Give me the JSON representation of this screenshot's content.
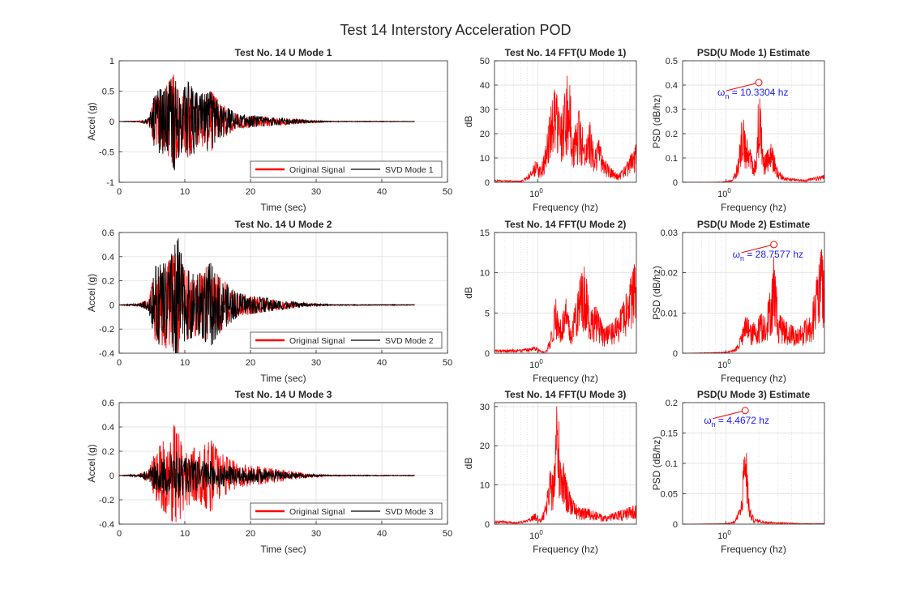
{
  "figure_title": "Test 14 Interstory Acceleration POD",
  "chart_data": [
    {
      "type": "line",
      "title": "Test No. 14 U Mode 1",
      "xlabel": "Time (sec)",
      "ylabel": "Accel (g)",
      "xlim": [
        0,
        50
      ],
      "ylim": [
        -1,
        1
      ],
      "xticks": [
        "0",
        "10",
        "20",
        "30",
        "40",
        "50"
      ],
      "yticks": [
        "-1",
        "-0.5",
        "0",
        "0.5",
        "1"
      ],
      "grid": true,
      "legend_position": "bottom-right",
      "series": [
        {
          "name": "Original Signal",
          "color": "#ff0000",
          "env": [
            [
              0,
              0.003
            ],
            [
              3,
              0.01
            ],
            [
              4.5,
              0.05
            ],
            [
              5.5,
              0.45
            ],
            [
              7,
              0.55
            ],
            [
              8.5,
              0.8
            ],
            [
              9.5,
              0.45
            ],
            [
              10.5,
              0.6
            ],
            [
              12,
              0.4
            ],
            [
              14,
              0.5
            ],
            [
              15.5,
              0.3
            ],
            [
              18,
              0.12
            ],
            [
              22,
              0.08
            ],
            [
              26,
              0.05
            ],
            [
              29,
              0.02
            ],
            [
              32,
              0.006
            ],
            [
              45,
              0.004
            ]
          ]
        },
        {
          "name": "SVD Mode 1",
          "color": "#000000",
          "env": [
            [
              0,
              0.003
            ],
            [
              3,
              0.01
            ],
            [
              4.5,
              0.05
            ],
            [
              5.5,
              0.5
            ],
            [
              7,
              0.55
            ],
            [
              8.5,
              0.8
            ],
            [
              9.5,
              0.5
            ],
            [
              10.5,
              0.65
            ],
            [
              12,
              0.45
            ],
            [
              14,
              0.5
            ],
            [
              15.5,
              0.3
            ],
            [
              18,
              0.12
            ],
            [
              22,
              0.08
            ],
            [
              26,
              0.05
            ],
            [
              29,
              0.02
            ],
            [
              32,
              0.006
            ],
            [
              45,
              0.004
            ]
          ]
        }
      ]
    },
    {
      "type": "line",
      "title": "Test No. 14 FFT(U Mode 1)",
      "xlabel": "Frequency (hz)",
      "ylabel": "dB",
      "xscale": "log",
      "xlim": [
        0.4,
        8
      ],
      "ylim": [
        0,
        50
      ],
      "xtick_value": 1,
      "xticks": [
        "10^0"
      ],
      "yticks": [
        "0",
        "10",
        "20",
        "30",
        "40",
        "50"
      ],
      "grid": true,
      "series": [
        {
          "name": "",
          "color": "#ff0000",
          "env": [
            [
              0.4,
              1
            ],
            [
              0.7,
              0.5
            ],
            [
              0.85,
              4
            ],
            [
              0.95,
              9
            ],
            [
              1.05,
              6
            ],
            [
              1.15,
              12
            ],
            [
              1.3,
              30
            ],
            [
              1.45,
              40
            ],
            [
              1.6,
              25
            ],
            [
              1.75,
              35
            ],
            [
              1.9,
              48
            ],
            [
              2.1,
              22
            ],
            [
              2.4,
              30
            ],
            [
              2.7,
              16
            ],
            [
              3.0,
              25
            ],
            [
              3.3,
              12
            ],
            [
              3.6,
              18
            ],
            [
              4.0,
              10
            ],
            [
              4.6,
              6
            ],
            [
              5.5,
              3
            ],
            [
              6.5,
              8
            ],
            [
              8,
              16
            ]
          ]
        }
      ]
    },
    {
      "type": "line",
      "title": "PSD(U Mode 1) Estimate",
      "xlabel": "Frequency (hz)",
      "ylabel": "PSD (dB/hz)",
      "xscale": "log",
      "xlim": [
        0.4,
        8
      ],
      "ylim": [
        0,
        0.5
      ],
      "xtick_value": 1,
      "xticks": [
        "10^0"
      ],
      "yticks": [
        "0",
        "0.1",
        "0.2",
        "0.3",
        "0.4",
        "0.5"
      ],
      "grid": true,
      "annotation": {
        "text": "ω",
        "sub": "n",
        "rest": " = 10.3304 hz",
        "peak_x": 2.0,
        "peak_y": 0.41
      },
      "series": [
        {
          "name": "",
          "color": "#ff0000",
          "env": [
            [
              0.4,
              0
            ],
            [
              0.9,
              0.001
            ],
            [
              1.0,
              0.005
            ],
            [
              1.15,
              0.01
            ],
            [
              1.3,
              0.1
            ],
            [
              1.42,
              0.3
            ],
            [
              1.5,
              0.2
            ],
            [
              1.7,
              0.12
            ],
            [
              1.9,
              0.08
            ],
            [
              2.0,
              0.41
            ],
            [
              2.2,
              0.1
            ],
            [
              2.6,
              0.16
            ],
            [
              3.0,
              0.05
            ],
            [
              3.5,
              0.02
            ],
            [
              5,
              0.01
            ],
            [
              8,
              0.03
            ]
          ]
        }
      ]
    },
    {
      "type": "line",
      "title": "Test No. 14 U Mode 2",
      "xlabel": "Time (sec)",
      "ylabel": "Accel (g)",
      "xlim": [
        0,
        50
      ],
      "ylim": [
        -0.4,
        0.6
      ],
      "xticks": [
        "0",
        "10",
        "20",
        "30",
        "40",
        "50"
      ],
      "yticks": [
        "-0.4",
        "-0.2",
        "0",
        "0.2",
        "0.4",
        "0.6"
      ],
      "grid": true,
      "legend_position": "bottom-right",
      "series": [
        {
          "name": "Original Signal",
          "color": "#ff0000",
          "env": [
            [
              0,
              0.002
            ],
            [
              3,
              0.01
            ],
            [
              4.5,
              0.05
            ],
            [
              5.5,
              0.3
            ],
            [
              7,
              0.35
            ],
            [
              9,
              0.45
            ],
            [
              10,
              0.3
            ],
            [
              12,
              0.25
            ],
            [
              14,
              0.35
            ],
            [
              15,
              0.25
            ],
            [
              18,
              0.1
            ],
            [
              22,
              0.06
            ],
            [
              26,
              0.03
            ],
            [
              29,
              0.012
            ],
            [
              32,
              0.004
            ],
            [
              45,
              0.003
            ]
          ]
        },
        {
          "name": "SVD Mode 2",
          "color": "#000000",
          "env": [
            [
              0,
              0.002
            ],
            [
              3,
              0.01
            ],
            [
              4.5,
              0.05
            ],
            [
              5.5,
              0.32
            ],
            [
              7,
              0.35
            ],
            [
              9,
              0.55
            ],
            [
              10,
              0.3
            ],
            [
              12,
              0.25
            ],
            [
              14,
              0.35
            ],
            [
              15,
              0.25
            ],
            [
              18,
              0.1
            ],
            [
              22,
              0.06
            ],
            [
              26,
              0.03
            ],
            [
              29,
              0.012
            ],
            [
              32,
              0.004
            ],
            [
              45,
              0.003
            ]
          ]
        }
      ]
    },
    {
      "type": "line",
      "title": "Test No. 14 FFT(U Mode 2)",
      "xlabel": "Frequency (hz)",
      "ylabel": "dB",
      "xscale": "log",
      "xlim": [
        0.4,
        8
      ],
      "ylim": [
        0,
        15
      ],
      "xtick_value": 1,
      "xticks": [
        "10^0"
      ],
      "yticks": [
        "0",
        "5",
        "10",
        "15"
      ],
      "grid": true,
      "series": [
        {
          "name": "",
          "color": "#ff0000",
          "env": [
            [
              0.4,
              0.4
            ],
            [
              0.7,
              0.5
            ],
            [
              0.95,
              0.8
            ],
            [
              1.1,
              0.2
            ],
            [
              1.2,
              0.5
            ],
            [
              1.3,
              2
            ],
            [
              1.45,
              7
            ],
            [
              1.6,
              4
            ],
            [
              1.8,
              7
            ],
            [
              2.0,
              3
            ],
            [
              2.4,
              9
            ],
            [
              2.7,
              11
            ],
            [
              3.0,
              5
            ],
            [
              3.4,
              6
            ],
            [
              4.0,
              3
            ],
            [
              5,
              4
            ],
            [
              6,
              6
            ],
            [
              7,
              9
            ],
            [
              8,
              12
            ]
          ]
        }
      ]
    },
    {
      "type": "line",
      "title": "PSD(U Mode 2) Estimate",
      "xlabel": "Frequency (hz)",
      "ylabel": "PSD (dB/hz)",
      "xscale": "log",
      "xlim": [
        0.4,
        8
      ],
      "ylim": [
        0,
        0.03
      ],
      "xtick_value": 1,
      "xticks": [
        "10^0"
      ],
      "yticks": [
        "0",
        "0.01",
        "0.02",
        "0.03"
      ],
      "grid": true,
      "annotation": {
        "text": "ω",
        "sub": "n",
        "rest": " = 28.7577 hz",
        "peak_x": 2.75,
        "peak_y": 0.027
      },
      "series": [
        {
          "name": "",
          "color": "#ff0000",
          "env": [
            [
              0.4,
              0
            ],
            [
              1.0,
              0.0003
            ],
            [
              1.2,
              0.001
            ],
            [
              1.4,
              0.005
            ],
            [
              1.5,
              0.01
            ],
            [
              1.7,
              0.007
            ],
            [
              2.0,
              0.009
            ],
            [
              2.4,
              0.012
            ],
            [
              2.7,
              0.02
            ],
            [
              2.75,
              0.027
            ],
            [
              3.0,
              0.01
            ],
            [
              3.5,
              0.008
            ],
            [
              4.5,
              0.006
            ],
            [
              6,
              0.01
            ],
            [
              7.5,
              0.026
            ],
            [
              8,
              0.02
            ]
          ]
        }
      ]
    },
    {
      "type": "line",
      "title": "Test No. 14 U Mode 3",
      "xlabel": "Time (sec)",
      "ylabel": "Accel (g)",
      "xlim": [
        0,
        50
      ],
      "ylim": [
        -0.4,
        0.6
      ],
      "xticks": [
        "0",
        "10",
        "20",
        "30",
        "40",
        "50"
      ],
      "yticks": [
        "-0.4",
        "-0.2",
        "0",
        "0.2",
        "0.4",
        "0.6"
      ],
      "grid": true,
      "legend_position": "bottom-right",
      "series": [
        {
          "name": "Original Signal",
          "color": "#ff0000",
          "env": [
            [
              0,
              0.002
            ],
            [
              3,
              0.01
            ],
            [
              4.5,
              0.05
            ],
            [
              5.5,
              0.22
            ],
            [
              7,
              0.3
            ],
            [
              8.7,
              0.45
            ],
            [
              10,
              0.25
            ],
            [
              12,
              0.22
            ],
            [
              14,
              0.3
            ],
            [
              15,
              0.2
            ],
            [
              18,
              0.1
            ],
            [
              22,
              0.07
            ],
            [
              26,
              0.04
            ],
            [
              29,
              0.015
            ],
            [
              32,
              0.004
            ],
            [
              45,
              0.003
            ]
          ]
        },
        {
          "name": "SVD Mode 3",
          "color": "#000000",
          "env": [
            [
              0,
              0.002
            ],
            [
              3,
              0.01
            ],
            [
              4.5,
              0.05
            ],
            [
              5.5,
              0.12
            ],
            [
              7,
              0.15
            ],
            [
              8.7,
              0.2
            ],
            [
              10,
              0.15
            ],
            [
              12,
              0.12
            ],
            [
              14,
              0.12
            ],
            [
              15,
              0.1
            ],
            [
              18,
              0.07
            ],
            [
              22,
              0.05
            ],
            [
              26,
              0.03
            ],
            [
              29,
              0.012
            ],
            [
              32,
              0.004
            ],
            [
              45,
              0.003
            ]
          ]
        }
      ]
    },
    {
      "type": "line",
      "title": "Test No. 14 FFT(U Mode 3)",
      "xlabel": "Frequency (hz)",
      "ylabel": "dB",
      "xscale": "log",
      "xlim": [
        0.4,
        8
      ],
      "ylim": [
        0,
        31
      ],
      "xtick_value": 1,
      "xticks": [
        "10^0"
      ],
      "yticks": [
        "0",
        "10",
        "20",
        "30"
      ],
      "grid": true,
      "series": [
        {
          "name": "",
          "color": "#ff0000",
          "env": [
            [
              0.4,
              1
            ],
            [
              0.6,
              0.5
            ],
            [
              0.8,
              1
            ],
            [
              0.95,
              3
            ],
            [
              1.05,
              1
            ],
            [
              1.15,
              4
            ],
            [
              1.3,
              14
            ],
            [
              1.38,
              12
            ],
            [
              1.45,
              24
            ],
            [
              1.5,
              32
            ],
            [
              1.6,
              22
            ],
            [
              1.8,
              12
            ],
            [
              2.0,
              7
            ],
            [
              2.4,
              4
            ],
            [
              3.0,
              4
            ],
            [
              4.0,
              2
            ],
            [
              5,
              3
            ],
            [
              6.5,
              4
            ],
            [
              8,
              5
            ]
          ]
        }
      ]
    },
    {
      "type": "line",
      "title": "PSD(U Mode 3) Estimate",
      "xlabel": "Frequency (hz)",
      "ylabel": "PSD (dB/hz)",
      "xscale": "log",
      "xlim": [
        0.4,
        8
      ],
      "ylim": [
        0,
        0.2
      ],
      "xtick_value": 1,
      "xticks": [
        "10^0"
      ],
      "yticks": [
        "0",
        "0.05",
        "0.1",
        "0.15",
        "0.2"
      ],
      "grid": true,
      "annotation": {
        "text": "ω",
        "sub": "n",
        "rest": " = 4.4672 hz",
        "peak_x": 1.5,
        "peak_y": 0.187
      },
      "series": [
        {
          "name": "",
          "color": "#ff0000",
          "env": [
            [
              0.4,
              0
            ],
            [
              1.0,
              0.001
            ],
            [
              1.2,
              0.005
            ],
            [
              1.3,
              0.02
            ],
            [
              1.38,
              0.035
            ],
            [
              1.45,
              0.1
            ],
            [
              1.5,
              0.187
            ],
            [
              1.55,
              0.1
            ],
            [
              1.65,
              0.03
            ],
            [
              1.8,
              0.01
            ],
            [
              2.2,
              0.005
            ],
            [
              3,
              0.003
            ],
            [
              5,
              0.001
            ],
            [
              8,
              0.001
            ]
          ]
        }
      ]
    }
  ]
}
